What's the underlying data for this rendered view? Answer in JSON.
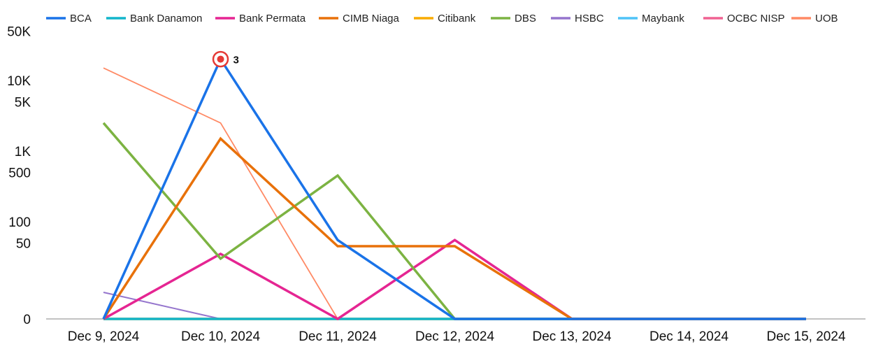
{
  "chart_data": {
    "type": "line",
    "x": [
      "Dec 9, 2024",
      "Dec 10, 2024",
      "Dec 11, 2024",
      "Dec 12, 2024",
      "Dec 13, 2024",
      "Dec 14, 2024",
      "Dec 15, 2024"
    ],
    "y_scale": "log",
    "y_ticks": [
      {
        "value": 0,
        "label": "0"
      },
      {
        "value": 50,
        "label": "50"
      },
      {
        "value": 100,
        "label": "100"
      },
      {
        "value": 500,
        "label": "500"
      },
      {
        "value": 1000,
        "label": "1K"
      },
      {
        "value": 5000,
        "label": "5K"
      },
      {
        "value": 10000,
        "label": "10K"
      },
      {
        "value": 50000,
        "label": "50K"
      }
    ],
    "legend_placement": "top",
    "grid": false,
    "series": [
      {
        "name": "BCA",
        "color": "#1a73e8",
        "width": 3.5,
        "values": [
          0,
          20000,
          55,
          0,
          0,
          0,
          0
        ]
      },
      {
        "name": "Bank Danamon",
        "color": "#12b5cb",
        "width": 3.5,
        "values": [
          0,
          0,
          0,
          0,
          0,
          0,
          0
        ]
      },
      {
        "name": "Bank Permata",
        "color": "#e52592",
        "width": 3.5,
        "values": [
          0,
          35,
          0,
          55,
          0,
          0,
          0
        ]
      },
      {
        "name": "CIMB Niaga",
        "color": "#e8710a",
        "width": 3.5,
        "values": [
          0,
          1500,
          45,
          45,
          0,
          0,
          0
        ]
      },
      {
        "name": "Citibank",
        "color": "#f9ab00",
        "width": 3.5,
        "values": [
          0,
          0,
          0,
          0,
          0,
          0,
          0
        ]
      },
      {
        "name": "DBS",
        "color": "#7cb342",
        "width": 3.5,
        "values": [
          2500,
          30,
          450,
          0,
          0,
          0,
          0
        ]
      },
      {
        "name": "HSBC",
        "color": "#9575cd",
        "width": 2,
        "values": [
          10,
          0,
          0,
          0,
          0,
          0,
          0
        ]
      },
      {
        "name": "Maybank",
        "color": "#4fc3f7",
        "width": 1.5,
        "values": [
          0,
          0,
          0,
          0,
          0,
          0,
          0
        ]
      },
      {
        "name": "OCBC NISP",
        "color": "#f06292",
        "width": 1.5,
        "values": [
          0,
          0,
          0,
          0,
          0,
          0,
          0
        ]
      },
      {
        "name": "UOB",
        "color": "#ff8a65",
        "width": 1.8,
        "values": [
          15000,
          2500,
          0,
          0,
          0,
          0,
          0
        ]
      }
    ],
    "annotations": [
      {
        "series": "BCA",
        "x": "Dec 10, 2024",
        "text": "3"
      }
    ]
  }
}
